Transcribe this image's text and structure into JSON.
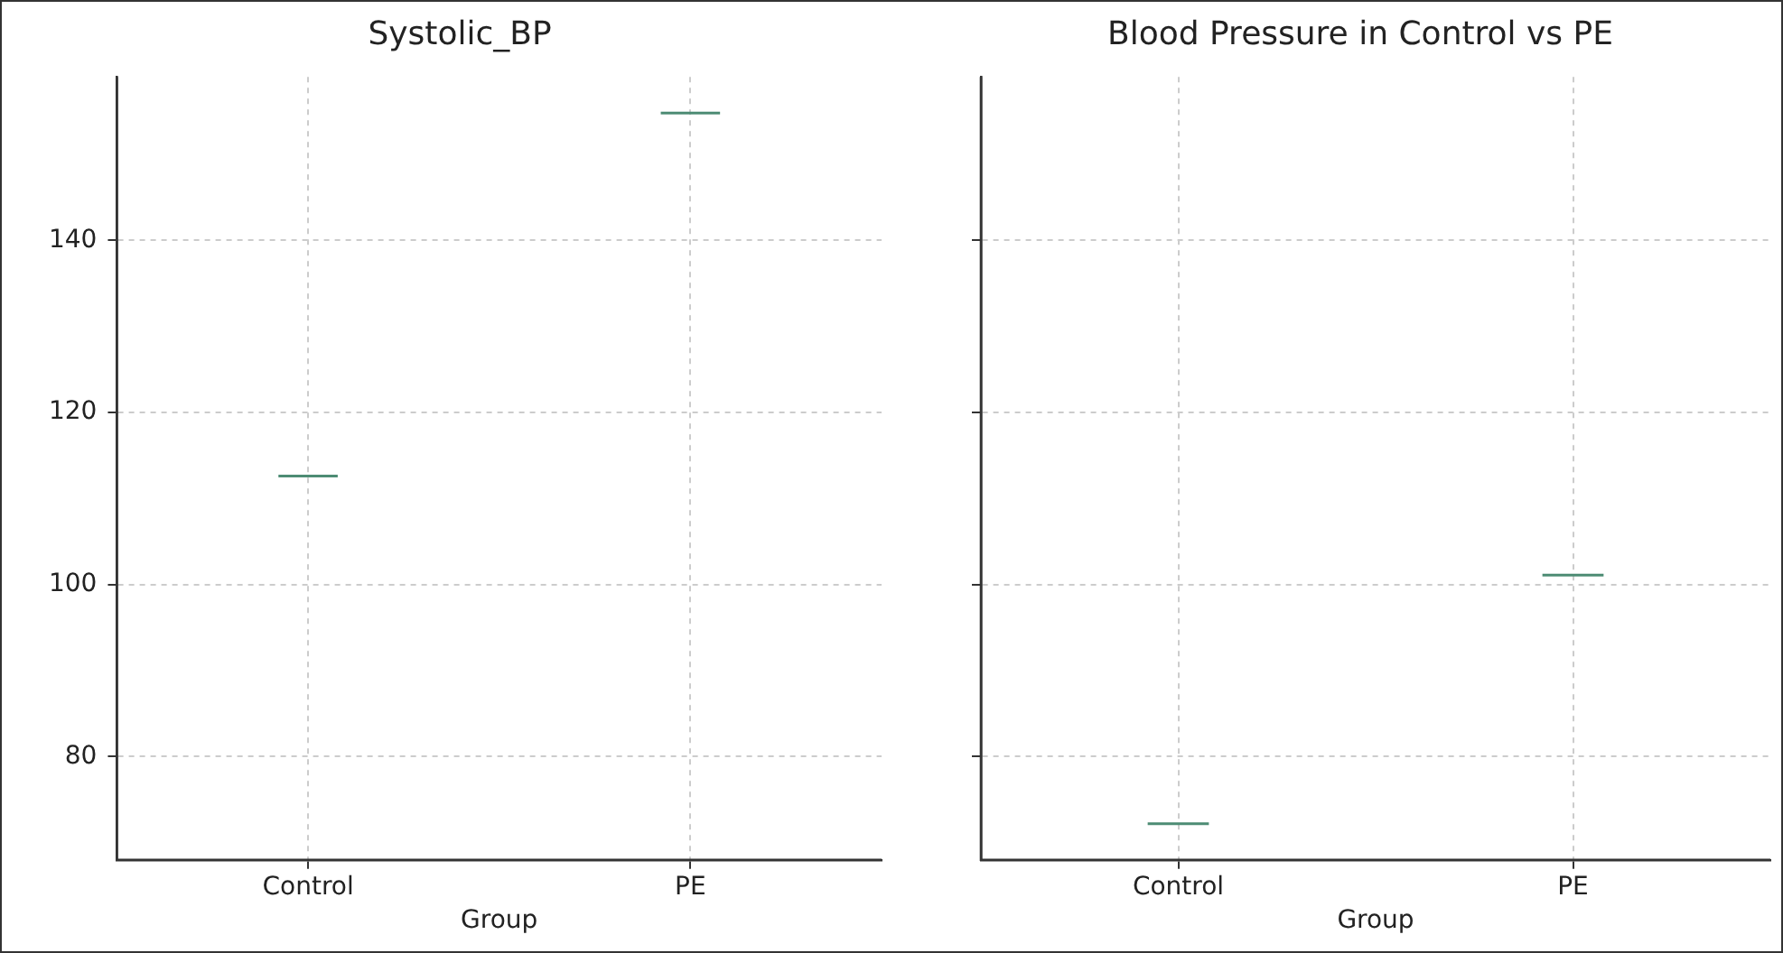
{
  "chart_data": [
    {
      "type": "box",
      "title": "Systolic_BP",
      "xlabel": "Group",
      "categories": [
        "Control",
        "PE"
      ],
      "ylim": [
        68,
        159
      ],
      "yticks": [
        80,
        100,
        120,
        140
      ],
      "grid": true,
      "series": [
        {
          "color": "#4d8c74",
          "boxes": [
            {
              "low": 112.6,
              "q1": 112.6,
              "median": 112.6,
              "q3": 112.6,
              "high": 112.6
            },
            {
              "low": 154.8,
              "q1": 154.8,
              "median": 154.8,
              "q3": 154.8,
              "high": 154.8
            }
          ]
        }
      ]
    },
    {
      "type": "box",
      "title": "Blood Pressure in Control vs PE",
      "xlabel": "Group",
      "categories": [
        "Control",
        "PE"
      ],
      "ylim": [
        68,
        159
      ],
      "yticks": [
        80,
        100,
        120,
        140
      ],
      "grid": true,
      "tick_labels": "x",
      "series": [
        {
          "color": "#4d8c74",
          "boxes": [
            {
              "low": 72.2,
              "q1": 72.2,
              "median": 72.2,
              "q3": 72.2,
              "high": 72.2
            },
            {
              "low": 101.1,
              "q1": 101.1,
              "median": 101.1,
              "q3": 101.1,
              "high": 101.1
            }
          ]
        }
      ]
    }
  ]
}
